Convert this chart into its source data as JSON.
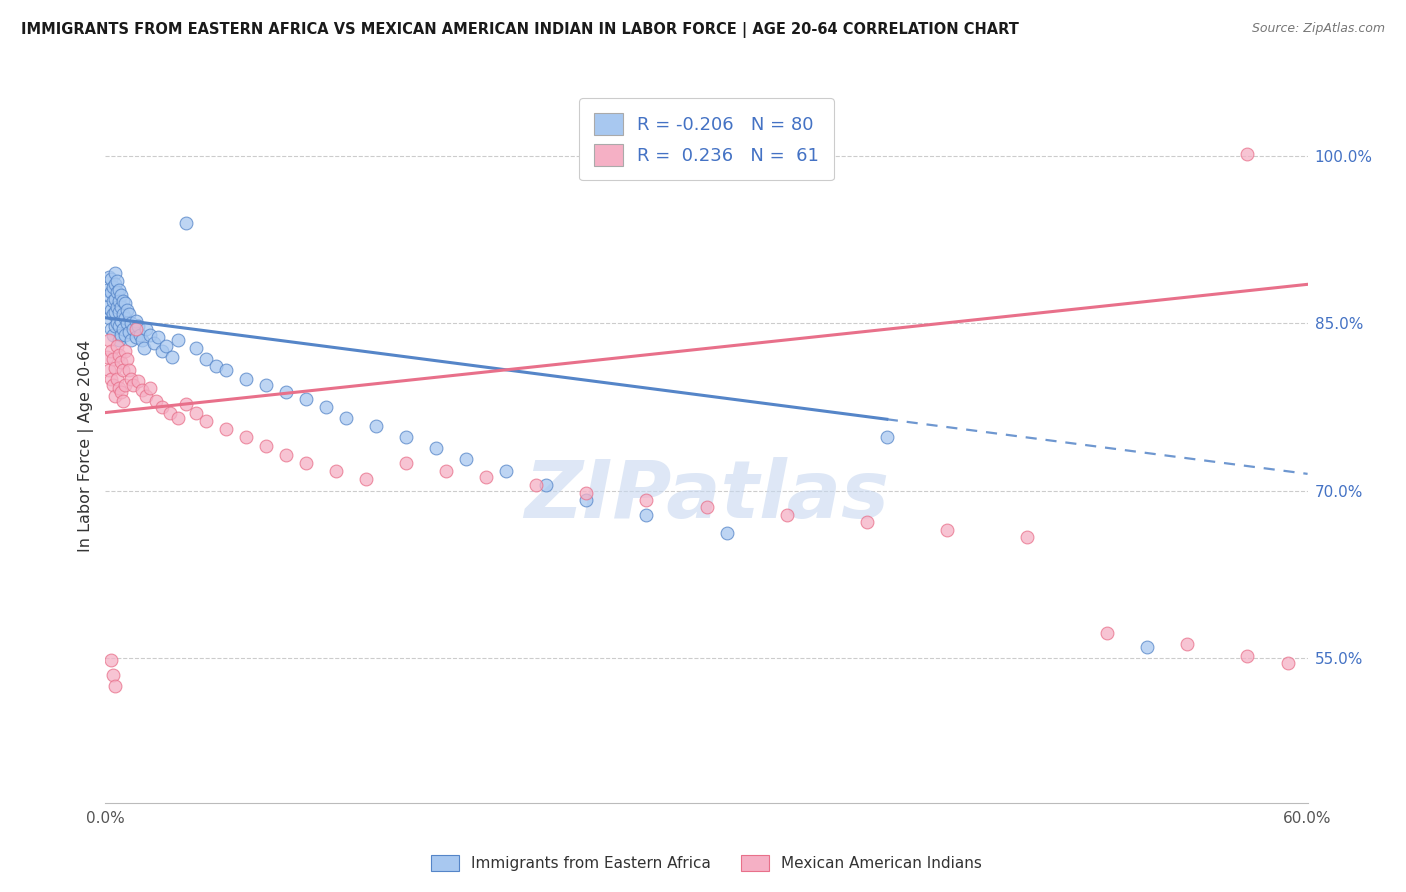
{
  "title": "IMMIGRANTS FROM EASTERN AFRICA VS MEXICAN AMERICAN INDIAN IN LABOR FORCE | AGE 20-64 CORRELATION CHART",
  "source": "Source: ZipAtlas.com",
  "legend_label1": "Immigrants from Eastern Africa",
  "legend_label2": "Mexican American Indians",
  "ylabel": "In Labor Force | Age 20-64",
  "xlim": [
    0.0,
    0.6
  ],
  "ylim": [
    0.42,
    1.06
  ],
  "right_yticks": [
    0.55,
    0.7,
    0.85,
    1.0
  ],
  "right_yticklabels": [
    "55.0%",
    "70.0%",
    "85.0%",
    "100.0%"
  ],
  "xtick_positions": [
    0.0,
    0.1,
    0.2,
    0.3,
    0.4,
    0.5,
    0.6
  ],
  "xtick_labels": [
    "0.0%",
    "",
    "",
    "",
    "",
    "",
    "60.0%"
  ],
  "R_blue": -0.206,
  "N_blue": 80,
  "R_pink": 0.236,
  "N_pink": 61,
  "blue_fill": "#A8C8F0",
  "pink_fill": "#F5B0C5",
  "blue_line": "#5585C8",
  "pink_line": "#E8708A",
  "watermark_color": "#C8D8F0",
  "blue_scatter_x": [
    0.001,
    0.001,
    0.002,
    0.002,
    0.002,
    0.003,
    0.003,
    0.003,
    0.003,
    0.004,
    0.004,
    0.004,
    0.004,
    0.005,
    0.005,
    0.005,
    0.005,
    0.005,
    0.006,
    0.006,
    0.006,
    0.006,
    0.007,
    0.007,
    0.007,
    0.007,
    0.007,
    0.008,
    0.008,
    0.008,
    0.008,
    0.009,
    0.009,
    0.009,
    0.01,
    0.01,
    0.01,
    0.011,
    0.011,
    0.012,
    0.012,
    0.013,
    0.013,
    0.014,
    0.015,
    0.015,
    0.016,
    0.017,
    0.018,
    0.019,
    0.02,
    0.022,
    0.024,
    0.026,
    0.028,
    0.03,
    0.033,
    0.036,
    0.04,
    0.045,
    0.05,
    0.055,
    0.06,
    0.07,
    0.08,
    0.09,
    0.1,
    0.11,
    0.12,
    0.135,
    0.15,
    0.165,
    0.18,
    0.2,
    0.22,
    0.24,
    0.27,
    0.31,
    0.39,
    0.52
  ],
  "blue_scatter_y": [
    0.88,
    0.865,
    0.892,
    0.875,
    0.855,
    0.89,
    0.878,
    0.862,
    0.845,
    0.883,
    0.87,
    0.858,
    0.84,
    0.895,
    0.885,
    0.872,
    0.86,
    0.848,
    0.888,
    0.878,
    0.865,
    0.85,
    0.88,
    0.87,
    0.86,
    0.848,
    0.835,
    0.875,
    0.865,
    0.852,
    0.84,
    0.87,
    0.858,
    0.845,
    0.868,
    0.855,
    0.84,
    0.862,
    0.85,
    0.858,
    0.842,
    0.85,
    0.835,
    0.845,
    0.852,
    0.838,
    0.848,
    0.84,
    0.835,
    0.828,
    0.845,
    0.84,
    0.832,
    0.838,
    0.825,
    0.83,
    0.82,
    0.835,
    0.94,
    0.828,
    0.818,
    0.812,
    0.808,
    0.8,
    0.795,
    0.788,
    0.782,
    0.775,
    0.765,
    0.758,
    0.748,
    0.738,
    0.728,
    0.718,
    0.705,
    0.692,
    0.678,
    0.662,
    0.748,
    0.56
  ],
  "pink_scatter_x": [
    0.001,
    0.002,
    0.002,
    0.003,
    0.003,
    0.004,
    0.004,
    0.005,
    0.005,
    0.006,
    0.006,
    0.007,
    0.007,
    0.008,
    0.008,
    0.009,
    0.009,
    0.01,
    0.01,
    0.011,
    0.012,
    0.013,
    0.014,
    0.015,
    0.016,
    0.018,
    0.02,
    0.022,
    0.025,
    0.028,
    0.032,
    0.036,
    0.04,
    0.045,
    0.05,
    0.06,
    0.07,
    0.08,
    0.09,
    0.1,
    0.115,
    0.13,
    0.15,
    0.17,
    0.19,
    0.215,
    0.24,
    0.27,
    0.3,
    0.34,
    0.38,
    0.42,
    0.46,
    0.5,
    0.54,
    0.57,
    0.59,
    0.003,
    0.004,
    0.005,
    0.57
  ],
  "pink_scatter_y": [
    0.82,
    0.835,
    0.808,
    0.825,
    0.8,
    0.818,
    0.795,
    0.81,
    0.785,
    0.83,
    0.8,
    0.822,
    0.792,
    0.815,
    0.788,
    0.808,
    0.78,
    0.825,
    0.795,
    0.818,
    0.808,
    0.8,
    0.795,
    0.845,
    0.798,
    0.79,
    0.785,
    0.792,
    0.78,
    0.775,
    0.77,
    0.765,
    0.778,
    0.77,
    0.762,
    0.755,
    0.748,
    0.74,
    0.732,
    0.725,
    0.718,
    0.71,
    0.725,
    0.718,
    0.712,
    0.705,
    0.698,
    0.692,
    0.685,
    0.678,
    0.672,
    0.665,
    0.658,
    0.572,
    0.562,
    0.552,
    0.545,
    0.548,
    0.535,
    0.525,
    1.002
  ]
}
